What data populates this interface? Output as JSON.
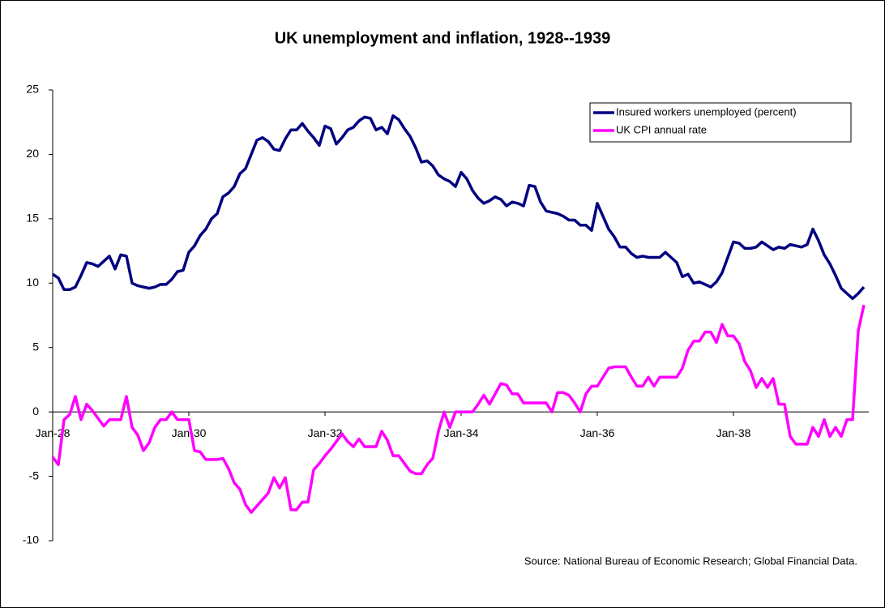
{
  "chart_data": {
    "type": "line",
    "title": "UK unemployment and inflation, 1928--1939",
    "annotation": "Source: National Bureau of Economic Research; Global Financial Data.",
    "categories": [
      "Jan-28",
      null,
      null,
      null,
      null,
      null,
      null,
      null,
      null,
      null,
      null,
      null,
      null,
      null,
      null,
      null,
      null,
      null,
      null,
      null,
      null,
      null,
      null,
      null,
      "Jan-30",
      null,
      null,
      null,
      null,
      null,
      null,
      null,
      null,
      null,
      null,
      null,
      null,
      null,
      null,
      null,
      null,
      null,
      null,
      null,
      null,
      null,
      null,
      null,
      "Jan-32",
      null,
      null,
      null,
      null,
      null,
      null,
      null,
      null,
      null,
      null,
      null,
      null,
      null,
      null,
      null,
      null,
      null,
      null,
      null,
      null,
      null,
      null,
      null,
      "Jan-34",
      null,
      null,
      null,
      null,
      null,
      null,
      null,
      null,
      null,
      null,
      null,
      null,
      null,
      null,
      null,
      null,
      null,
      null,
      null,
      null,
      null,
      null,
      null,
      "Jan-36",
      null,
      null,
      null,
      null,
      null,
      null,
      null,
      null,
      null,
      null,
      null,
      null,
      null,
      null,
      null,
      null,
      null,
      null,
      null,
      null,
      null,
      null,
      null,
      "Jan-38",
      null,
      null,
      null,
      null,
      null,
      null,
      null,
      null,
      null,
      null,
      null,
      null,
      null,
      null,
      null,
      null,
      null,
      null,
      null,
      null,
      null,
      null,
      null
    ],
    "series": [
      {
        "name": "Insured workers unemployed (percent)",
        "color": "#000080",
        "values": [
          10.7,
          10.4,
          9.5,
          9.5,
          9.7,
          10.6,
          11.6,
          11.5,
          11.3,
          11.7,
          12.1,
          11.1,
          12.2,
          12.1,
          10.0,
          9.8,
          9.7,
          9.6,
          9.7,
          9.9,
          9.9,
          10.3,
          10.9,
          11.0,
          12.4,
          12.9,
          13.7,
          14.2,
          15.0,
          15.4,
          16.7,
          17.0,
          17.5,
          18.5,
          18.9,
          20.0,
          21.1,
          21.3,
          21.0,
          20.4,
          20.3,
          21.2,
          21.9,
          21.9,
          22.4,
          21.8,
          21.3,
          20.7,
          22.2,
          22.0,
          20.8,
          21.3,
          21.9,
          22.1,
          22.6,
          22.9,
          22.8,
          21.9,
          22.1,
          21.6,
          23.0,
          22.7,
          22.0,
          21.4,
          20.5,
          19.4,
          19.5,
          19.1,
          18.4,
          18.1,
          17.9,
          17.5,
          18.6,
          18.1,
          17.2,
          16.6,
          16.2,
          16.4,
          16.7,
          16.5,
          16.0,
          16.3,
          16.2,
          16.0,
          17.6,
          17.5,
          16.3,
          15.6,
          15.5,
          15.4,
          15.2,
          14.9,
          14.9,
          14.5,
          14.5,
          14.1,
          16.2,
          15.2,
          14.2,
          13.6,
          12.8,
          12.8,
          12.3,
          12.0,
          12.1,
          12.0,
          12.0,
          12.0,
          12.4,
          12.0,
          11.6,
          10.5,
          10.7,
          10.0,
          10.1,
          9.9,
          9.7,
          10.1,
          10.8,
          12.0,
          13.2,
          13.1,
          12.7,
          12.7,
          12.8,
          13.2,
          12.9,
          12.6,
          12.8,
          12.7,
          13.0,
          12.9,
          12.8,
          13.0,
          14.2,
          13.3,
          12.2,
          11.5,
          10.6,
          9.6,
          9.2,
          8.8,
          9.2,
          9.7
        ]
      },
      {
        "name": "UK CPI annual rate",
        "color": "#ff00ff",
        "values": [
          -3.5,
          -4.1,
          -0.6,
          -0.2,
          1.2,
          -0.6,
          0.6,
          0.1,
          -0.5,
          -1.1,
          -0.6,
          -0.6,
          -0.6,
          1.2,
          -1.2,
          -1.8,
          -3.0,
          -2.4,
          -1.2,
          -0.6,
          -0.6,
          0.0,
          -0.6,
          -0.6,
          -0.6,
          -3.0,
          -3.1,
          -3.7,
          -3.7,
          -3.7,
          -3.6,
          -4.4,
          -5.5,
          -6.0,
          -7.2,
          -7.8,
          -7.3,
          -6.8,
          -6.3,
          -5.1,
          -5.9,
          -5.1,
          -7.6,
          -7.6,
          -7.0,
          -7.0,
          -4.5,
          -4.0,
          -3.4,
          -2.9,
          -2.3,
          -1.7,
          -2.3,
          -2.7,
          -2.1,
          -2.7,
          -2.7,
          -2.7,
          -1.5,
          -2.2,
          -3.4,
          -3.4,
          -4.0,
          -4.6,
          -4.8,
          -4.8,
          -4.1,
          -3.6,
          -1.5,
          0.0,
          -1.2,
          0.0,
          0.0,
          0.0,
          0.0,
          0.6,
          1.3,
          0.6,
          1.4,
          2.2,
          2.1,
          1.4,
          1.4,
          0.7,
          0.7,
          0.7,
          0.7,
          0.7,
          0.0,
          1.5,
          1.5,
          1.3,
          0.7,
          0.0,
          1.4,
          2.0,
          2.0,
          2.7,
          3.4,
          3.5,
          3.5,
          3.5,
          2.7,
          2.0,
          2.0,
          2.7,
          2.0,
          2.7,
          2.7,
          2.7,
          2.7,
          3.4,
          4.8,
          5.5,
          5.5,
          6.2,
          6.2,
          5.4,
          6.8,
          5.9,
          5.9,
          5.3,
          3.9,
          3.2,
          1.9,
          2.6,
          1.9,
          2.6,
          0.6,
          0.6,
          -1.9,
          -2.5,
          -2.5,
          -2.5,
          -1.2,
          -1.9,
          -0.6,
          -1.9,
          -1.2,
          -1.9,
          -0.6,
          -0.6,
          6.3,
          8.3
        ]
      }
    ],
    "ylim": [
      -10,
      25
    ],
    "yticks": [
      -10,
      -5,
      0,
      5,
      10,
      15,
      20,
      25
    ],
    "grid": false,
    "legend": "upper right"
  }
}
